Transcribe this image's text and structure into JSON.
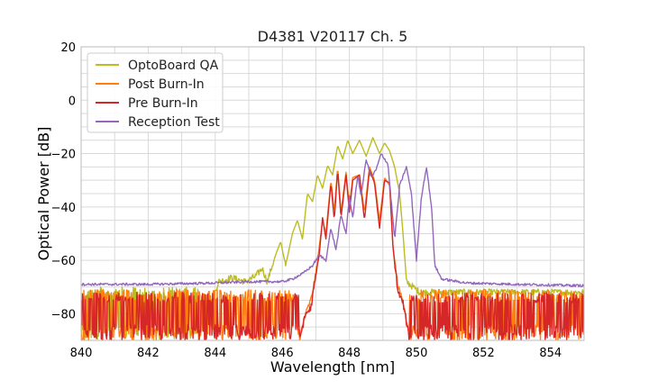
{
  "chart_data": {
    "type": "line",
    "title": "D4381 V20117 Ch. 5",
    "xlabel": "Wavelength [nm]",
    "ylabel": "Optical Power [dB]",
    "xlim": [
      840,
      855
    ],
    "ylim": [
      -90,
      20
    ],
    "xticks": [
      840,
      842,
      844,
      846,
      848,
      850,
      852,
      854
    ],
    "yticks": [
      20,
      0,
      -20,
      -40,
      -60,
      -80
    ],
    "ytick_labels": [
      "20",
      "0",
      "−20",
      "−40",
      "−60",
      "−80"
    ],
    "grid": true,
    "legend_position": "top-left",
    "series": [
      {
        "name": "OptoBoard QA",
        "color": "#bcbd22",
        "noise_floor": -70,
        "points": [
          [
            840,
            -90
          ],
          [
            843.5,
            -90
          ],
          [
            844.1,
            -68
          ],
          [
            844.5,
            -66.5
          ],
          [
            844.9,
            -68
          ],
          [
            845.2,
            -66
          ],
          [
            845.4,
            -63
          ],
          [
            845.55,
            -68
          ],
          [
            845.8,
            -58
          ],
          [
            845.95,
            -53
          ],
          [
            846.1,
            -62
          ],
          [
            846.3,
            -50
          ],
          [
            846.45,
            -45
          ],
          [
            846.6,
            -52
          ],
          [
            846.75,
            -35
          ],
          [
            846.9,
            -38
          ],
          [
            847.05,
            -28
          ],
          [
            847.2,
            -33
          ],
          [
            847.35,
            -24.5
          ],
          [
            847.5,
            -28
          ],
          [
            847.65,
            -17
          ],
          [
            847.8,
            -22
          ],
          [
            847.95,
            -15
          ],
          [
            848.1,
            -20
          ],
          [
            848.3,
            -15
          ],
          [
            848.5,
            -21
          ],
          [
            848.7,
            -14
          ],
          [
            848.9,
            -20
          ],
          [
            849.05,
            -16
          ],
          [
            849.2,
            -19
          ],
          [
            849.35,
            -25
          ],
          [
            849.5,
            -35
          ],
          [
            849.6,
            -50
          ],
          [
            849.7,
            -68
          ],
          [
            849.9,
            -70
          ],
          [
            850.1,
            -72
          ],
          [
            855,
            -72
          ]
        ]
      },
      {
        "name": "Post Burn-In",
        "color": "#ff7f0e",
        "noise_floor": -71,
        "points": [
          [
            840,
            -90
          ],
          [
            846.5,
            -90
          ],
          [
            846.7,
            -80
          ],
          [
            846.85,
            -75
          ],
          [
            847.0,
            -65
          ],
          [
            847.1,
            -55
          ],
          [
            847.2,
            -45
          ],
          [
            847.3,
            -50
          ],
          [
            847.45,
            -30
          ],
          [
            847.55,
            -42
          ],
          [
            847.65,
            -25
          ],
          [
            847.75,
            -42
          ],
          [
            847.9,
            -27
          ],
          [
            848.0,
            -40
          ],
          [
            848.1,
            -29
          ],
          [
            848.3,
            -28
          ],
          [
            848.45,
            -42
          ],
          [
            848.6,
            -25
          ],
          [
            848.75,
            -30
          ],
          [
            848.9,
            -45
          ],
          [
            849.05,
            -29
          ],
          [
            849.2,
            -32
          ],
          [
            849.3,
            -55
          ],
          [
            849.45,
            -70
          ],
          [
            849.6,
            -75
          ],
          [
            849.8,
            -90
          ],
          [
            855,
            -90
          ]
        ]
      },
      {
        "name": "Pre Burn-In",
        "color": "#d62728",
        "noise_floor": -72,
        "points": [
          [
            840,
            -90
          ],
          [
            846.5,
            -90
          ],
          [
            846.7,
            -80
          ],
          [
            846.85,
            -78
          ],
          [
            847.0,
            -66
          ],
          [
            847.1,
            -58
          ],
          [
            847.2,
            -44
          ],
          [
            847.3,
            -52
          ],
          [
            847.45,
            -31
          ],
          [
            847.55,
            -45
          ],
          [
            847.65,
            -26
          ],
          [
            847.75,
            -44
          ],
          [
            847.9,
            -28
          ],
          [
            848.0,
            -42
          ],
          [
            848.1,
            -30
          ],
          [
            848.3,
            -28
          ],
          [
            848.45,
            -45
          ],
          [
            848.6,
            -26
          ],
          [
            848.75,
            -31
          ],
          [
            848.9,
            -48
          ],
          [
            849.05,
            -30
          ],
          [
            849.2,
            -31
          ],
          [
            849.3,
            -55
          ],
          [
            849.45,
            -72
          ],
          [
            849.6,
            -76
          ],
          [
            849.8,
            -90
          ],
          [
            855,
            -90
          ]
        ]
      },
      {
        "name": "Reception Test",
        "color": "#9467bd",
        "noise_floor": -69,
        "points": [
          [
            840,
            -69
          ],
          [
            842,
            -69
          ],
          [
            844,
            -68.5
          ],
          [
            845,
            -68
          ],
          [
            846,
            -68
          ],
          [
            846.3,
            -67
          ],
          [
            846.6,
            -65
          ],
          [
            846.9,
            -62
          ],
          [
            847.1,
            -58
          ],
          [
            847.3,
            -60
          ],
          [
            847.45,
            -48
          ],
          [
            847.6,
            -56
          ],
          [
            847.75,
            -43
          ],
          [
            847.9,
            -50
          ],
          [
            848.0,
            -36
          ],
          [
            848.1,
            -44
          ],
          [
            848.25,
            -28
          ],
          [
            848.35,
            -36
          ],
          [
            848.5,
            -22
          ],
          [
            848.65,
            -29
          ],
          [
            848.8,
            -26
          ],
          [
            848.95,
            -20
          ],
          [
            849.15,
            -24
          ],
          [
            849.35,
            -52
          ],
          [
            849.5,
            -32
          ],
          [
            849.7,
            -25
          ],
          [
            849.85,
            -35
          ],
          [
            850.0,
            -60
          ],
          [
            850.15,
            -36
          ],
          [
            850.3,
            -25
          ],
          [
            850.45,
            -40
          ],
          [
            850.55,
            -62
          ],
          [
            850.75,
            -67
          ],
          [
            851.5,
            -68.5
          ],
          [
            853,
            -69
          ],
          [
            855,
            -69.5
          ]
        ]
      }
    ]
  }
}
